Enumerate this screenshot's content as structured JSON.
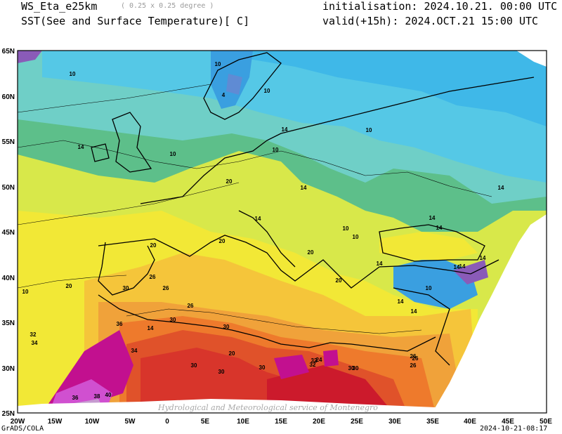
{
  "header": {
    "model": "WS_Eta_e25km",
    "resolution": "( 0.25 x 0.25 degree )",
    "variable": "SST(See and Surface Temperature)[ C]",
    "init_label": "initialisation: 2024.10.21. 00:00 UTC",
    "valid_label": "valid(+15h): 2024.OCT.21 15:00 UTC"
  },
  "footer": {
    "software": "GrADS/COLA",
    "timestamp": "2024-10-21-08:17"
  },
  "watermark": "Hydrological and Meteorological service of Montenegro",
  "axes": {
    "lon_labels": [
      "20W",
      "15W",
      "10W",
      "5W",
      "0",
      "5E",
      "10E",
      "15E",
      "20E",
      "25E",
      "30E",
      "35E",
      "40E",
      "45E",
      "50E"
    ],
    "lat_labels": [
      "25N",
      "30N",
      "35N",
      "40N",
      "45N",
      "50N",
      "55N",
      "60N",
      "65N"
    ]
  },
  "contour_labels": [
    "10",
    "10",
    "10",
    "4",
    "10",
    "14",
    "14",
    "10",
    "10",
    "14",
    "14",
    "14",
    "10",
    "14",
    "14",
    "10",
    "20",
    "20",
    "20",
    "14",
    "14",
    "14",
    "14",
    "20",
    "20",
    "20",
    "26",
    "26",
    "30",
    "30",
    "26",
    "30",
    "20",
    "14",
    "10",
    "14",
    "10",
    "14",
    "32",
    "34",
    "36",
    "34",
    "30",
    "30",
    "30",
    "32",
    "26",
    "30",
    "32",
    "24",
    "30",
    "26",
    "26",
    "38",
    "36",
    "40"
  ],
  "colors": {
    "c4": "#8a5bb8",
    "c6": "#5f8bd4",
    "c8": "#3a9fe0",
    "c10": "#3fb8e8",
    "c12": "#55c8e6",
    "c14": "#6fcfc7",
    "c16": "#5dbf8a",
    "c18": "#9fd25a",
    "c20": "#d8e84a",
    "c22": "#f2e836",
    "c24": "#f5c53a",
    "c26": "#f0a23a",
    "c28": "#ee7a2c",
    "c30": "#e0522a",
    "c32": "#d8352b",
    "c34": "#cc1a2c",
    "c36": "#c2108f",
    "c38": "#d050d0",
    "c40": "#c69ad0"
  }
}
